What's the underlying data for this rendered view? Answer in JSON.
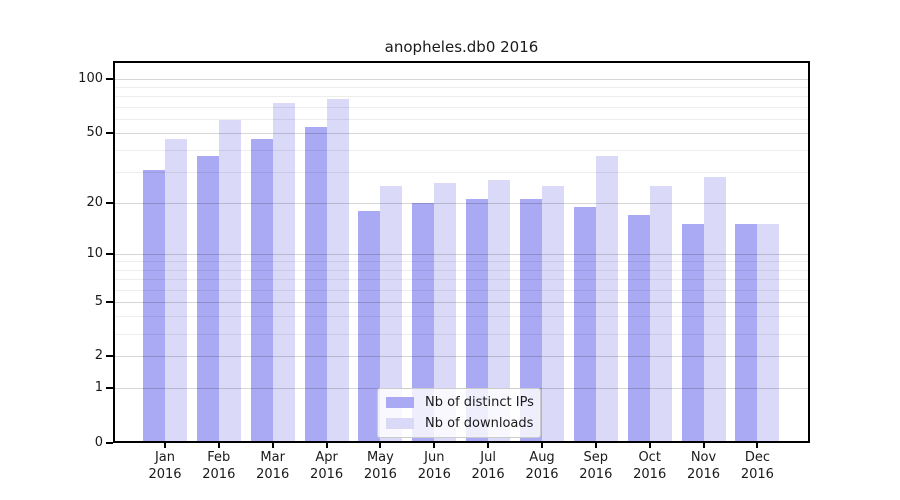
{
  "chart_data": {
    "type": "bar",
    "title": "anopheles.db0 2016",
    "x_year": "2016",
    "categories": [
      "Jan",
      "Feb",
      "Mar",
      "Apr",
      "May",
      "Jun",
      "Jul",
      "Aug",
      "Sep",
      "Oct",
      "Nov",
      "Dec"
    ],
    "series": [
      {
        "name": "Nb of distinct IPs",
        "color": "#a9a9f4",
        "values": [
          31,
          37,
          46,
          54,
          18,
          20,
          21,
          21,
          19,
          17,
          15,
          15
        ]
      },
      {
        "name": "Nb of downloads",
        "color": "#dadaf8",
        "values": [
          46,
          59,
          74,
          77,
          25,
          26,
          27,
          25,
          37,
          25,
          28,
          15
        ]
      }
    ],
    "yscale": "log1p",
    "ylim": [
      0,
      126
    ],
    "y_tick_values": [
      0,
      1,
      2,
      5,
      10,
      20,
      50,
      100
    ],
    "y_tick_labels": [
      "0",
      "1",
      "2",
      "5",
      "10",
      "20",
      "50",
      "100"
    ],
    "y_minor_gridlines": [
      3,
      4,
      6,
      7,
      8,
      9,
      30,
      40,
      60,
      70,
      80,
      90
    ],
    "grid": true,
    "legend_position": "lower center",
    "xlabel": "",
    "ylabel": ""
  },
  "colors": {
    "bar_distinct_ips": "#a9a9f4",
    "bar_downloads": "#dadaf8",
    "grid_major": "rgba(0,0,0,0.16)",
    "grid_minor": "rgba(0,0,0,0.07)",
    "axis": "#000000",
    "text": "#1a1a1a",
    "legend_border": "#cccccc"
  }
}
